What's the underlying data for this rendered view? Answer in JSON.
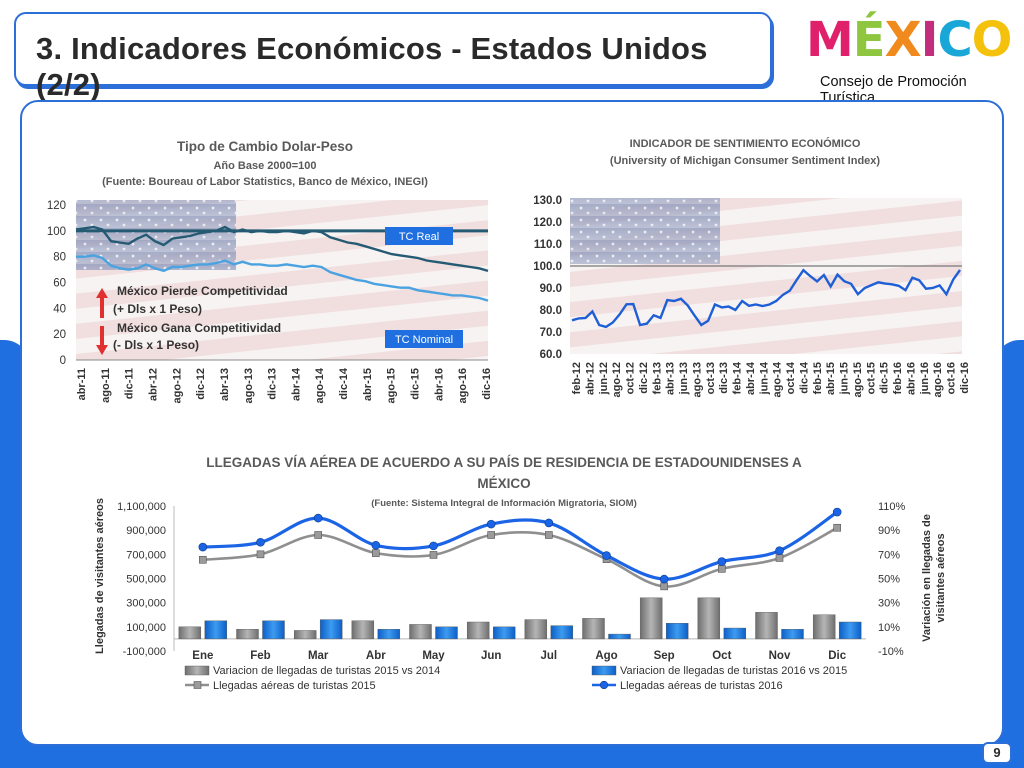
{
  "slide": {
    "title": "3. Indicadores Económicos - Estados Unidos (2/2)",
    "logo_text": "MÉXICO",
    "subtitle": "Consejo de Promoción Turística",
    "page_number": "9"
  },
  "colors": {
    "accent_blue": "#1f6fe0",
    "tc_real": "#245a72",
    "tc_nominal": "#4aa3e0",
    "sentiment": "#1f5fd6",
    "bar_gray": "#8c8c8c",
    "bar_blue": "#1a7be0",
    "line_gray": "#8f8f8f",
    "line_blue": "#1b64e6",
    "logo_colors": [
      "#e0206b",
      "#8ec63f",
      "#f08a1c",
      "#c22d7c",
      "#19a7d8",
      "#f4c20d"
    ]
  },
  "chart_data": [
    {
      "type": "line",
      "title": "Tipo de Cambio Dolar-Peso",
      "subtitle_1": "Año Base 2000=100",
      "subtitle_2": "(Fuente: Boureau of Labor Statistics, Banco de México, INEGI)",
      "ylim": [
        0,
        120
      ],
      "yticks": [
        "0",
        "20",
        "40",
        "60",
        "80",
        "100",
        "120"
      ],
      "xticks": [
        "abr-11",
        "ago-11",
        "dic-11",
        "abr-12",
        "ago-12",
        "dic-12",
        "abr-13",
        "ago-13",
        "dic-13",
        "abr-14",
        "ago-14",
        "dic-14",
        "abr-15",
        "ago-15",
        "dic-15",
        "abr-16",
        "ago-16",
        "dic-16"
      ],
      "reference_line": 100,
      "series": [
        {
          "name": "TC Real",
          "values": [
            101,
            102,
            103,
            101,
            92,
            91,
            90,
            94,
            97,
            92,
            89,
            94,
            95,
            96,
            98,
            99,
            100,
            103,
            99,
            101,
            99,
            100,
            99,
            99,
            100,
            99,
            98,
            100,
            99,
            95,
            93,
            91,
            90,
            88,
            86,
            84,
            82,
            81,
            80,
            79,
            77,
            76,
            75,
            74,
            73,
            72,
            71,
            69
          ]
        },
        {
          "name": "TC Nominal",
          "values": [
            80,
            80,
            81,
            79,
            73,
            71,
            70,
            71,
            74,
            71,
            69,
            72,
            72,
            73,
            74,
            74,
            75,
            77,
            74,
            76,
            74,
            74,
            73,
            73,
            74,
            73,
            72,
            73,
            72,
            68,
            66,
            64,
            62,
            61,
            59,
            58,
            57,
            56,
            56,
            54,
            53,
            52,
            51,
            50,
            50,
            49,
            48,
            46
          ]
        }
      ],
      "annotations": {
        "pierde_1": "México Pierde Competitividad",
        "pierde_2": "(+ Dls x 1 Peso)",
        "gana_1": "México Gana Competitividad",
        "gana_2": "(- Dls x 1 Peso)"
      }
    },
    {
      "type": "line",
      "title": "INDICADOR DE SENTIMIENTO ECONÓMICO",
      "subtitle": "(University of Michigan Consumer Sentiment Index)",
      "ylim": [
        60,
        130
      ],
      "yticks": [
        "60.0",
        "70.0",
        "80.0",
        "90.0",
        "100.0",
        "110.0",
        "120.0",
        "130.0"
      ],
      "reference_line": 100,
      "xticks": [
        "feb-12",
        "abr-12",
        "jun-12",
        "ago-12",
        "oct-12",
        "dic-12",
        "feb-13",
        "abr-13",
        "jun-13",
        "ago-13",
        "oct-13",
        "dic-13",
        "feb-14",
        "abr-14",
        "jun-14",
        "ago-14",
        "oct-14",
        "dic-14",
        "feb-15",
        "abr-15",
        "jun-15",
        "ago-15",
        "oct-15",
        "dic-15",
        "feb-16",
        "abr-16",
        "jun-16",
        "ago-16",
        "oct-16",
        "dic-16"
      ],
      "series": [
        {
          "name": "Consumer Sentiment Index",
          "values": [
            75.3,
            76.2,
            76.4,
            79.3,
            73.2,
            72.3,
            74.3,
            78.0,
            82.6,
            82.7,
            73.2,
            73.8,
            77.6,
            76.4,
            84.5,
            84.1,
            85.1,
            82.1,
            77.5,
            73.2,
            75.1,
            82.5,
            81.2,
            81.6,
            80.0,
            84.1,
            81.9,
            82.5,
            81.8,
            82.5,
            84.1,
            86.9,
            88.8,
            93.6,
            98.1,
            95.4,
            93.0,
            95.9,
            90.7,
            96.1,
            93.1,
            91.9,
            87.2,
            90.0,
            91.3,
            92.6,
            92.0,
            91.7,
            91.0,
            89.0,
            94.7,
            93.5,
            89.7,
            90.0,
            91.2,
            87.2,
            93.8,
            98.2
          ]
        }
      ]
    },
    {
      "type": "bar",
      "title_1": "LLEGADAS VÍA AÉREA DE ACUERDO A SU PAÍS DE RESIDENCIA DE ESTADOUNIDENSES A",
      "title_2": "MÉXICO",
      "subtitle": "(Fuente: Sistema Integral de Información Migratoria, SIOM)",
      "ylabel": "Llegadas de visitantes aéreos",
      "y2label_1": "Variación en llegadas de",
      "y2label_2": "visitantes aéreos",
      "ylim": [
        -100000,
        1100000
      ],
      "yticks": [
        "-100,000",
        "100,000",
        "300,000",
        "500,000",
        "700,000",
        "900,000",
        "1,100,000"
      ],
      "y2lim": [
        -10,
        110
      ],
      "y2ticks": [
        "-10%",
        "10%",
        "30%",
        "50%",
        "70%",
        "90%",
        "110%"
      ],
      "categories": [
        "Ene",
        "Feb",
        "Mar",
        "Abr",
        "May",
        "Jun",
        "Jul",
        "Ago",
        "Sep",
        "Oct",
        "Nov",
        "Dic"
      ],
      "series": [
        {
          "name": "Variacion de llegadas de turistas  2015 vs 2014",
          "type": "bar",
          "axis": "right",
          "values": [
            10,
            8,
            7,
            15,
            12,
            14,
            16,
            17,
            34,
            34,
            22,
            20
          ]
        },
        {
          "name": "Variacion de llegadas de turistas  2016 vs 2015",
          "type": "bar",
          "axis": "right",
          "values": [
            15,
            15,
            16,
            8,
            10,
            10,
            11,
            4,
            13,
            9,
            8,
            14
          ]
        },
        {
          "name": "Llegadas aéreas de turistas 2015",
          "type": "line",
          "axis": "left",
          "values": [
            655000,
            700000,
            860000,
            710000,
            695000,
            860000,
            860000,
            660000,
            435000,
            580000,
            670000,
            920000
          ]
        },
        {
          "name": "Llegadas aéreas de turistas 2016",
          "type": "line",
          "axis": "left",
          "values": [
            760000,
            800000,
            1000000,
            775000,
            770000,
            950000,
            960000,
            690000,
            495000,
            640000,
            730000,
            1050000
          ]
        }
      ]
    }
  ]
}
